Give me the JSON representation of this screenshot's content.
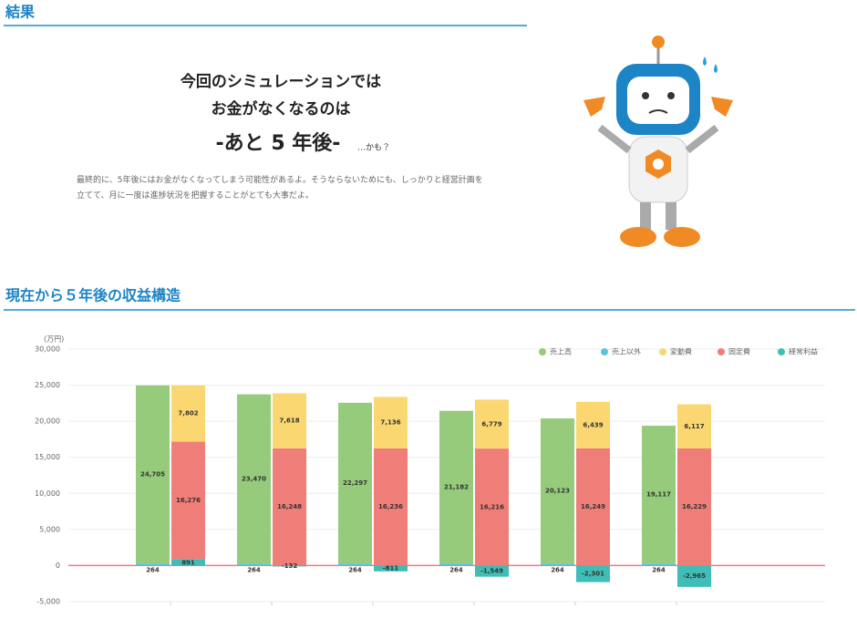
{
  "header": {
    "title": "結果"
  },
  "result": {
    "line1": "今回のシミュレーションでは",
    "line2": "お金がなくなるのは",
    "headline": "-あと 5 年後-",
    "aside": "…かも？",
    "message": "最終的に、5年後にはお金がなくなってしまう可能性があるよ。そうならないためにも、しっかりと経営計画を立てて、月に一度は進捗状況を把握することがとても大事だよ。"
  },
  "section": {
    "title": "現在から５年後の収益構造"
  },
  "chart_data": {
    "type": "bar",
    "y_label": "(万円)",
    "categories": [
      null,
      null,
      null,
      null,
      null,
      null
    ],
    "series": [
      {
        "name": "売上高",
        "color": "#95cb7b",
        "values": [
          24705,
          23470,
          22297,
          21182,
          20123,
          19117
        ],
        "value_labels": [
          "24,705",
          "23,470",
          "22,297",
          "21,182",
          "20,123",
          "19,117"
        ]
      },
      {
        "name": "売上以外",
        "color": "#5bc3e0",
        "values": [
          264,
          264,
          264,
          264,
          264,
          264
        ]
      },
      {
        "name": "変動費",
        "color": "#fbd772",
        "values": [
          7802,
          7618,
          7136,
          6779,
          6439,
          6117
        ],
        "value_labels": [
          "7,802",
          "7,618",
          "7,136",
          "6,779",
          "6,439",
          "6,117"
        ]
      },
      {
        "name": "固定費",
        "color": "#ef7e78",
        "values": [
          16276,
          16248,
          16236,
          16216,
          16249,
          16229
        ],
        "value_labels": [
          "16,276",
          "16,248",
          "16,236",
          "16,216",
          "16,249",
          "16,229"
        ]
      },
      {
        "name": "経常利益",
        "color": "#3fbdb6",
        "values": [
          891,
          -132,
          -811,
          -1549,
          -2301,
          -2965
        ],
        "value_labels": [
          "891",
          "-132",
          "-811",
          "-1,549",
          "-2,301",
          "-2,965"
        ]
      }
    ],
    "ylim": [
      -5000,
      30000
    ],
    "yticks": [
      {
        "value": -5000,
        "label": "-5,000"
      },
      0,
      {
        "value": 5000,
        "label": "5,000"
      },
      {
        "value": 10000,
        "label": "10,000"
      },
      {
        "value": 15000,
        "label": "15,000"
      },
      {
        "value": 20000,
        "label": "20,000"
      },
      {
        "value": 25000,
        "label": "25,000"
      },
      {
        "value": 30000,
        "label": "30,000"
      }
    ],
    "grid": true,
    "legend": "top-right"
  }
}
